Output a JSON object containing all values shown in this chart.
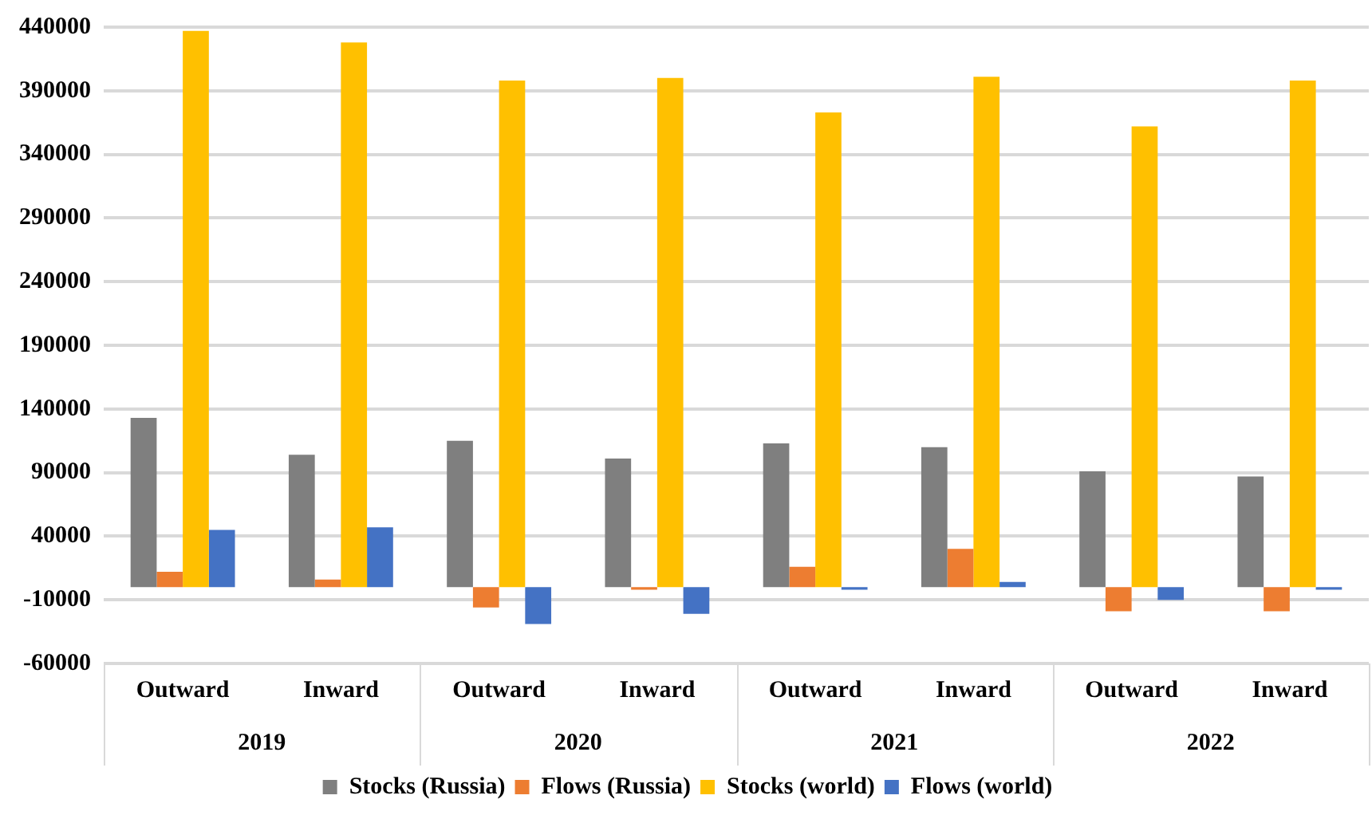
{
  "chart_data": {
    "type": "bar",
    "categories": [
      "Outward",
      "Inward",
      "Outward",
      "Inward",
      "Outward",
      "Inward",
      "Outward",
      "Inward"
    ],
    "series": [
      {
        "name": "Stocks (Russia)",
        "color": "#7f7f7f",
        "values": [
          133000,
          104000,
          115000,
          101000,
          113000,
          110000,
          91000,
          87000
        ]
      },
      {
        "name": "Flows (Russia)",
        "color": "#ed7d31",
        "values": [
          12000,
          6000,
          -16000,
          -2000,
          16000,
          30000,
          -19000,
          -19000
        ]
      },
      {
        "name": "Stocks (world)",
        "color": "#ffc000",
        "values": [
          437000,
          428000,
          398000,
          400000,
          373000,
          401000,
          362000,
          398000
        ]
      },
      {
        "name": "Flows (world)",
        "color": "#4472c4",
        "values": [
          45000,
          47000,
          -29000,
          -21000,
          -2000,
          4000,
          -10000,
          -2000
        ]
      }
    ],
    "annotations": [
      "2019",
      "2020",
      "2021",
      "2022"
    ],
    "ylim": [
      -60000,
      440000
    ],
    "yticks": [
      -60000,
      -10000,
      40000,
      90000,
      140000,
      190000,
      240000,
      290000,
      340000,
      390000,
      440000
    ],
    "grid": "y",
    "legend": "bottom"
  }
}
